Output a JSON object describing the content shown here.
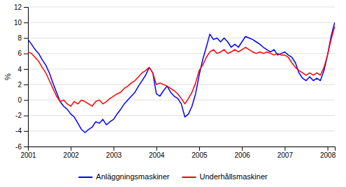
{
  "chart_data": {
    "type": "line",
    "ylabel": "%",
    "xlim": [
      2001.0,
      2008.17
    ],
    "xticks": [
      2001,
      2002,
      2003,
      2004,
      2005,
      2006,
      2007,
      2008
    ],
    "ylim": [
      -6,
      12
    ],
    "yticks": [
      -6,
      -4,
      -2,
      0,
      2,
      4,
      6,
      8,
      10,
      12
    ],
    "grid": true,
    "legend": "bottom",
    "x": [
      2001.0,
      2001.083,
      2001.167,
      2001.25,
      2001.333,
      2001.417,
      2001.5,
      2001.583,
      2001.667,
      2001.75,
      2001.833,
      2001.917,
      2002.0,
      2002.083,
      2002.167,
      2002.25,
      2002.333,
      2002.417,
      2002.5,
      2002.583,
      2002.667,
      2002.75,
      2002.833,
      2002.917,
      2003.0,
      2003.083,
      2003.167,
      2003.25,
      2003.333,
      2003.417,
      2003.5,
      2003.583,
      2003.667,
      2003.75,
      2003.833,
      2003.917,
      2004.0,
      2004.083,
      2004.167,
      2004.25,
      2004.333,
      2004.417,
      2004.5,
      2004.583,
      2004.667,
      2004.75,
      2004.833,
      2004.917,
      2005.0,
      2005.083,
      2005.167,
      2005.25,
      2005.333,
      2005.417,
      2005.5,
      2005.583,
      2005.667,
      2005.75,
      2005.833,
      2005.917,
      2006.0,
      2006.083,
      2006.167,
      2006.25,
      2006.333,
      2006.417,
      2006.5,
      2006.583,
      2006.667,
      2006.75,
      2006.833,
      2006.917,
      2007.0,
      2007.083,
      2007.167,
      2007.25,
      2007.333,
      2007.417,
      2007.5,
      2007.583,
      2007.667,
      2007.75,
      2007.833,
      2007.917,
      2008.0,
      2008.083,
      2008.167
    ],
    "series": [
      {
        "name": "Anläggningsmaskiner",
        "color": "#0000ff",
        "values": [
          7.8,
          7.2,
          6.5,
          6.0,
          5.2,
          4.5,
          3.5,
          2.2,
          1.0,
          -0.2,
          -0.8,
          -1.2,
          -1.8,
          -2.2,
          -3.0,
          -3.8,
          -4.2,
          -3.8,
          -3.5,
          -2.8,
          -3.0,
          -2.5,
          -3.2,
          -2.8,
          -2.5,
          -1.8,
          -1.2,
          -0.5,
          0.0,
          0.5,
          1.0,
          1.8,
          2.5,
          3.2,
          4.2,
          3.5,
          0.8,
          0.5,
          1.2,
          1.8,
          1.0,
          0.5,
          0.2,
          -0.5,
          -2.2,
          -1.8,
          -0.8,
          0.8,
          3.2,
          5.2,
          6.8,
          8.5,
          7.8,
          8.0,
          7.5,
          8.0,
          7.5,
          6.8,
          7.2,
          6.8,
          7.5,
          8.2,
          8.0,
          7.8,
          7.5,
          7.2,
          6.8,
          6.5,
          6.2,
          6.5,
          5.8,
          6.0,
          6.2,
          5.8,
          5.5,
          4.8,
          3.5,
          2.8,
          2.5,
          3.0,
          2.5,
          2.8,
          2.5,
          3.8,
          5.8,
          8.2,
          10.0
        ]
      },
      {
        "name": "Underhållsmaskiner",
        "color": "#ff0000",
        "values": [
          6.2,
          6.0,
          5.5,
          5.0,
          4.2,
          3.5,
          2.5,
          1.5,
          0.5,
          -0.2,
          0.0,
          -0.5,
          -0.8,
          -0.2,
          -0.5,
          0.0,
          -0.2,
          -0.5,
          -0.8,
          -0.2,
          0.0,
          -0.5,
          -0.2,
          0.2,
          0.5,
          0.8,
          1.0,
          1.5,
          1.8,
          2.2,
          2.5,
          3.0,
          3.5,
          3.8,
          4.2,
          3.5,
          2.0,
          2.2,
          2.0,
          1.8,
          1.5,
          1.2,
          0.8,
          0.2,
          -0.5,
          0.2,
          1.0,
          2.2,
          3.8,
          4.5,
          5.5,
          6.2,
          6.5,
          6.0,
          6.2,
          6.5,
          6.0,
          6.2,
          6.5,
          6.2,
          6.5,
          6.8,
          6.5,
          6.2,
          6.0,
          6.2,
          6.0,
          6.2,
          6.0,
          5.8,
          6.0,
          5.8,
          5.8,
          5.5,
          4.8,
          4.2,
          3.8,
          3.5,
          3.2,
          3.5,
          3.2,
          3.5,
          3.2,
          4.2,
          5.8,
          7.8,
          9.5
        ]
      }
    ]
  }
}
